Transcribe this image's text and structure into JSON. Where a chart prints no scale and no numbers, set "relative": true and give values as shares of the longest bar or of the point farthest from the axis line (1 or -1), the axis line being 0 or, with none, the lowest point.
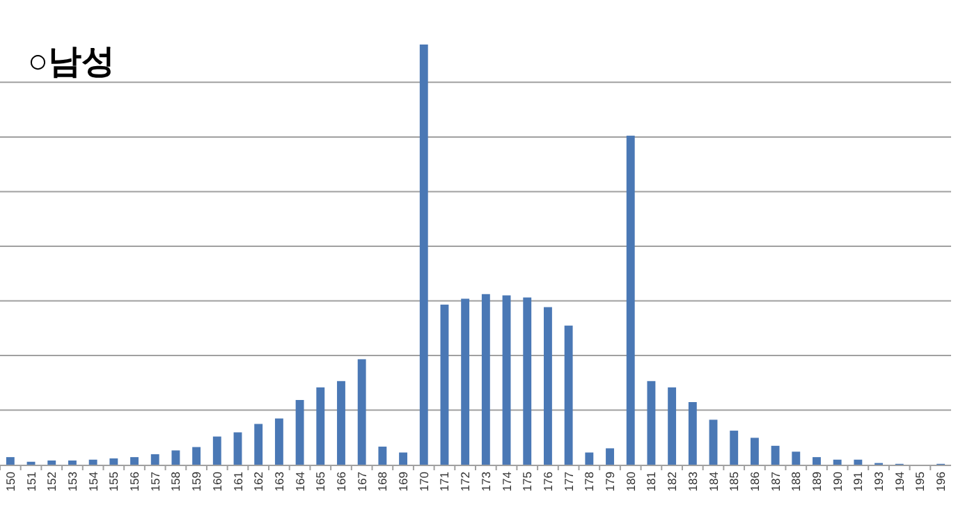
{
  "chart_data": {
    "type": "bar",
    "title": "○남성",
    "relative": true,
    "grid": true,
    "color": "#4a78b5",
    "categories": [
      "150",
      "151",
      "152",
      "153",
      "154",
      "155",
      "156",
      "157",
      "158",
      "159",
      "160",
      "161",
      "162",
      "163",
      "164",
      "165",
      "166",
      "167",
      "168",
      "169",
      "170",
      "171",
      "172",
      "173",
      "174",
      "175",
      "176",
      "177",
      "178",
      "179",
      "180",
      "181",
      "182",
      "183",
      "184",
      "185",
      "186",
      "187",
      "188",
      "189",
      "190",
      "191",
      "193",
      "194",
      "195",
      "196"
    ],
    "values": [
      0.018,
      0.007,
      0.01,
      0.01,
      0.012,
      0.015,
      0.018,
      0.025,
      0.034,
      0.042,
      0.067,
      0.077,
      0.097,
      0.11,
      0.154,
      0.184,
      0.199,
      0.251,
      0.043,
      0.029,
      1,
      0.381,
      0.395,
      0.406,
      0.403,
      0.398,
      0.375,
      0.331,
      0.029,
      0.039,
      0.783,
      0.199,
      0.184,
      0.149,
      0.107,
      0.081,
      0.064,
      0.045,
      0.031,
      0.018,
      0.012,
      0.012,
      0.004,
      0.002,
      0,
      0.002
    ]
  }
}
